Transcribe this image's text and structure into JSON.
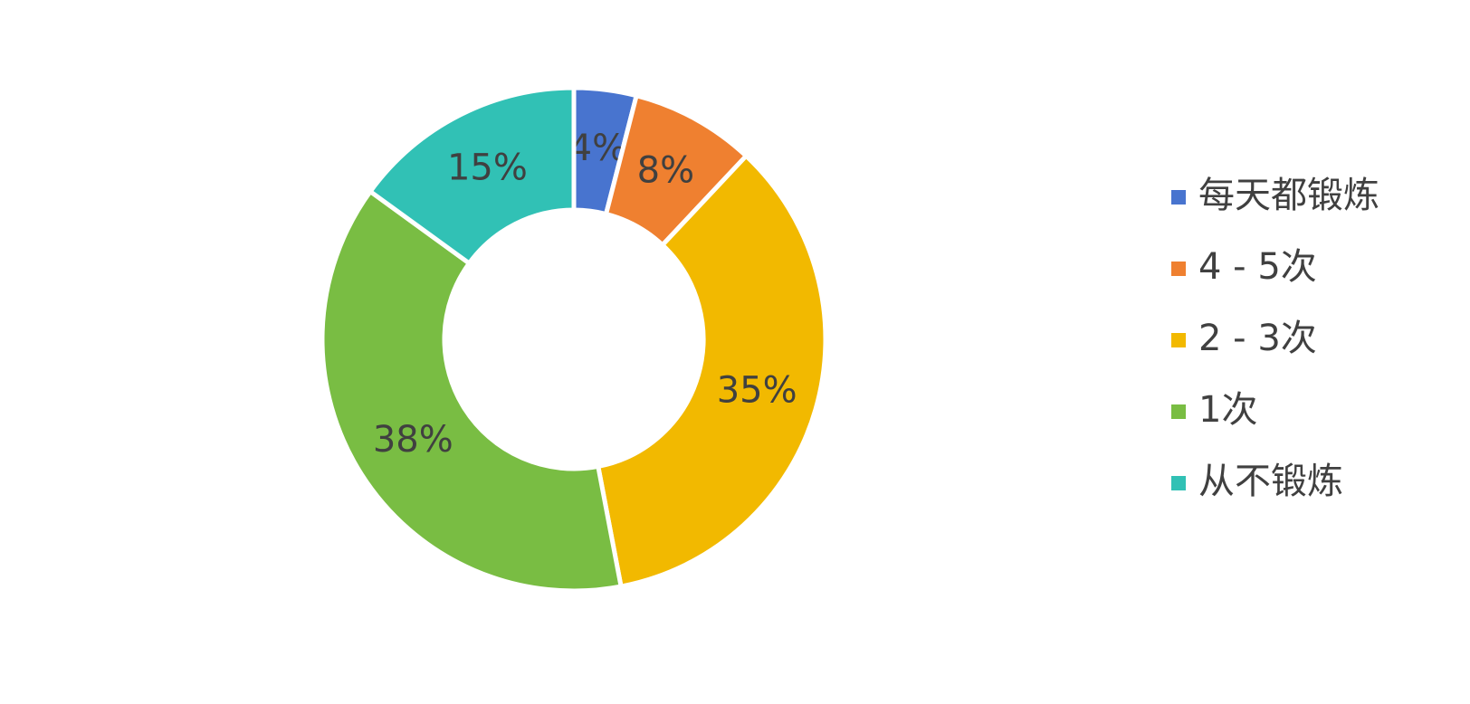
{
  "chart_data": {
    "type": "donut",
    "categories": [
      "每天都锻炼",
      "4 - 5次",
      "2 - 3次",
      "1次",
      "从不锻炼"
    ],
    "values": [
      4,
      8,
      35,
      38,
      15
    ],
    "value_labels": [
      "4%",
      "8%",
      "35%",
      "38%",
      "15%"
    ],
    "colors": [
      "#4874cf",
      "#ef8030",
      "#f2b900",
      "#79bd43",
      "#31c1b5"
    ],
    "legend": "right"
  }
}
